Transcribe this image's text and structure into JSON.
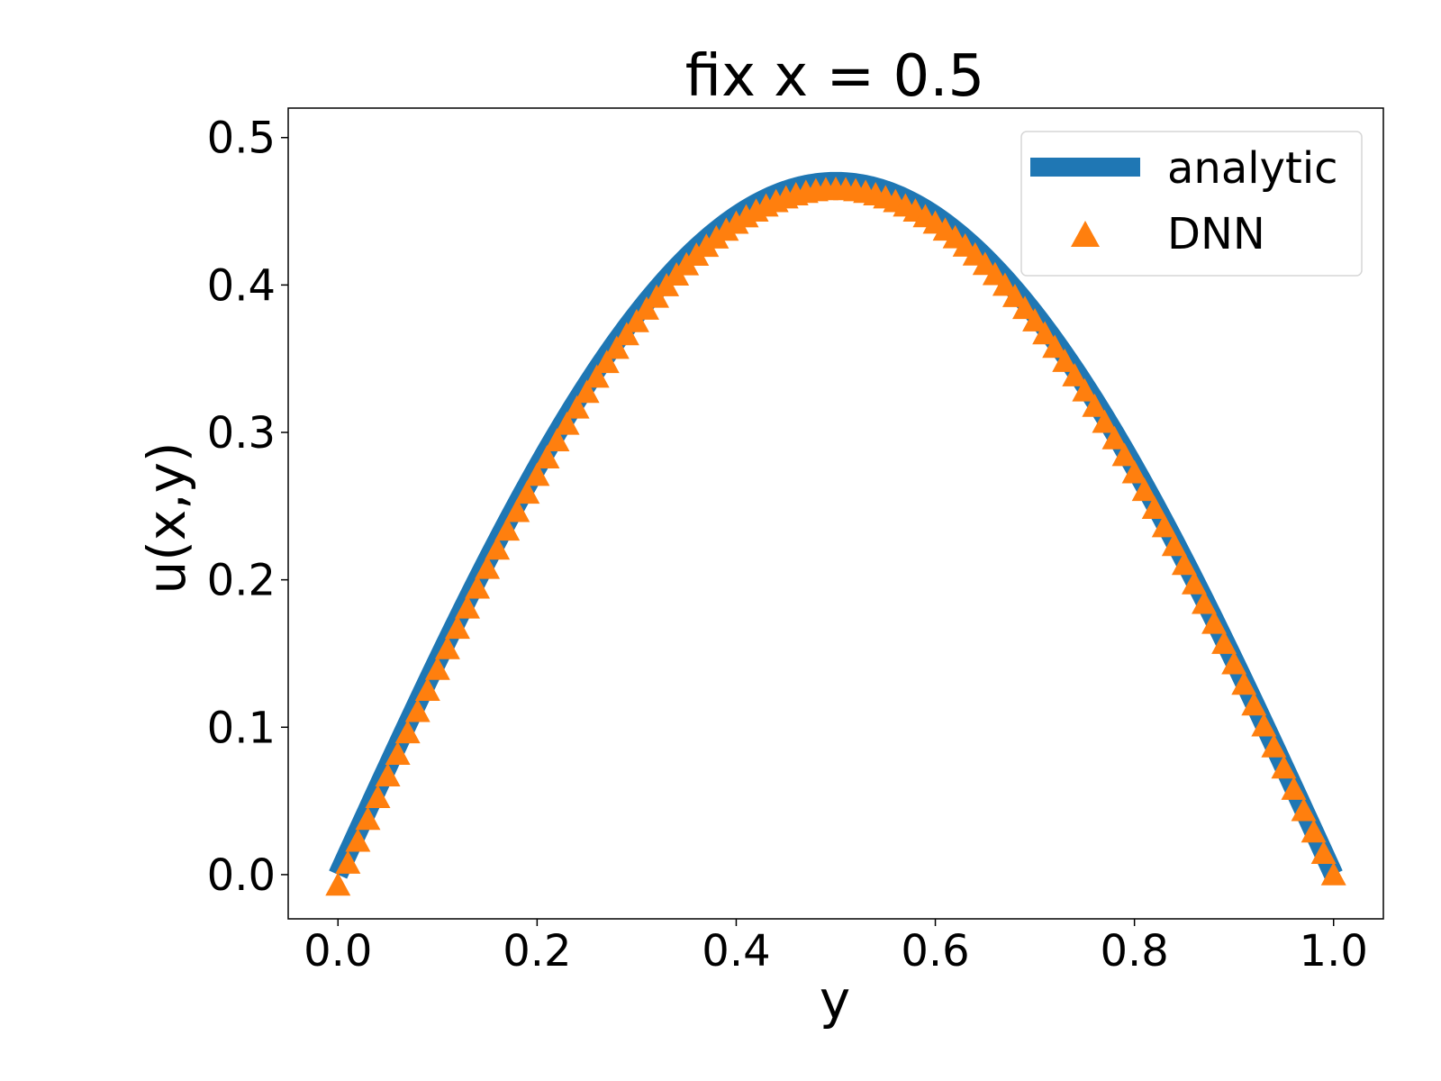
{
  "chart_data": {
    "type": "line",
    "title": "fix x = 0.5",
    "xlabel": "y",
    "ylabel": "u(x,y)",
    "xlim": [
      -0.05,
      1.05
    ],
    "ylim": [
      -0.03,
      0.52
    ],
    "xticks": [
      0.0,
      0.2,
      0.4,
      0.6,
      0.8,
      1.0
    ],
    "xtick_labels": [
      "0.0",
      "0.2",
      "0.4",
      "0.6",
      "0.8",
      "1.0"
    ],
    "yticks": [
      0.0,
      0.1,
      0.2,
      0.3,
      0.4,
      0.5
    ],
    "ytick_labels": [
      "0.0",
      "0.1",
      "0.2",
      "0.3",
      "0.4",
      "0.5"
    ],
    "grid": false,
    "legend_position": "top-right",
    "series": [
      {
        "name": "analytic",
        "kind": "line",
        "color": "#1f77b4",
        "y_peak": 0.47,
        "x": [
          0.0,
          0.05,
          0.1,
          0.15,
          0.2,
          0.25,
          0.3,
          0.35,
          0.4,
          0.45,
          0.5,
          0.55,
          0.6,
          0.65,
          0.7,
          0.75,
          0.8,
          0.85,
          0.9,
          0.95,
          1.0
        ],
        "y": [
          0.0,
          0.0734,
          0.1452,
          0.2134,
          0.2763,
          0.3323,
          0.3802,
          0.4188,
          0.447,
          0.4642,
          0.47,
          0.4642,
          0.447,
          0.4188,
          0.3802,
          0.3323,
          0.2763,
          0.2134,
          0.1452,
          0.0734,
          0.0
        ]
      },
      {
        "name": "DNN",
        "kind": "markers",
        "marker": "triangle-up",
        "color": "#ff7f0e",
        "y_peak": 0.465,
        "x_start": 0.0,
        "x_end": 1.0,
        "y_offset_start": -0.007,
        "y_offset_end": 0.0
      }
    ]
  }
}
